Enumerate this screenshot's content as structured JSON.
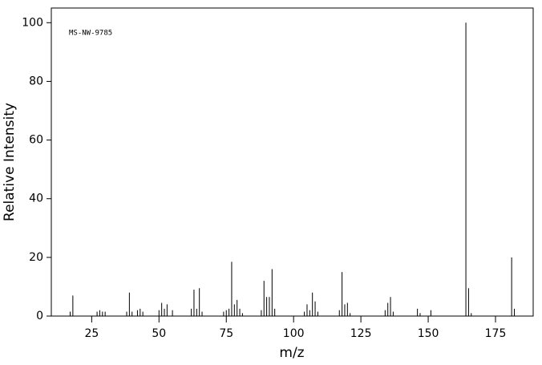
{
  "chart_data": {
    "type": "stem",
    "annotation": "MS-NW-9785",
    "x_label": "m/z",
    "y_label": "Relative Intensity",
    "xlim": [
      10,
      189
    ],
    "ylim": [
      0,
      105
    ],
    "xticks": [
      25,
      50,
      75,
      100,
      125,
      150,
      175
    ],
    "yticks": [
      0,
      20,
      40,
      60,
      80,
      100
    ],
    "color": "#000000",
    "x": [
      17,
      18,
      27,
      28,
      29,
      30,
      38,
      39,
      40,
      42,
      43,
      44,
      50,
      51,
      52,
      53,
      55,
      62,
      63,
      64,
      65,
      66,
      74,
      75,
      76,
      77,
      78,
      79,
      80,
      81,
      88,
      89,
      90,
      91,
      92,
      93,
      104,
      105,
      106,
      107,
      108,
      109,
      117,
      118,
      119,
      120,
      121,
      134,
      135,
      136,
      137,
      146,
      147,
      151,
      164,
      165,
      166,
      181,
      182
    ],
    "values": [
      1.5,
      7,
      1.5,
      2,
      1.5,
      1.5,
      1.5,
      8,
      1.5,
      2,
      2.5,
      1.5,
      2,
      4.5,
      2.5,
      4,
      2,
      2.5,
      9,
      2.5,
      9.5,
      1.5,
      1.5,
      2,
      2.5,
      18.5,
      4,
      5.5,
      2.5,
      1,
      2,
      12,
      6.5,
      6.5,
      16,
      2.5,
      1.5,
      4,
      2,
      8,
      5,
      1.5,
      2,
      15,
      4,
      4.5,
      1,
      2,
      4.5,
      6.5,
      1.5,
      2.5,
      1,
      2,
      100,
      9.5,
      1,
      20,
      2.5
    ]
  }
}
